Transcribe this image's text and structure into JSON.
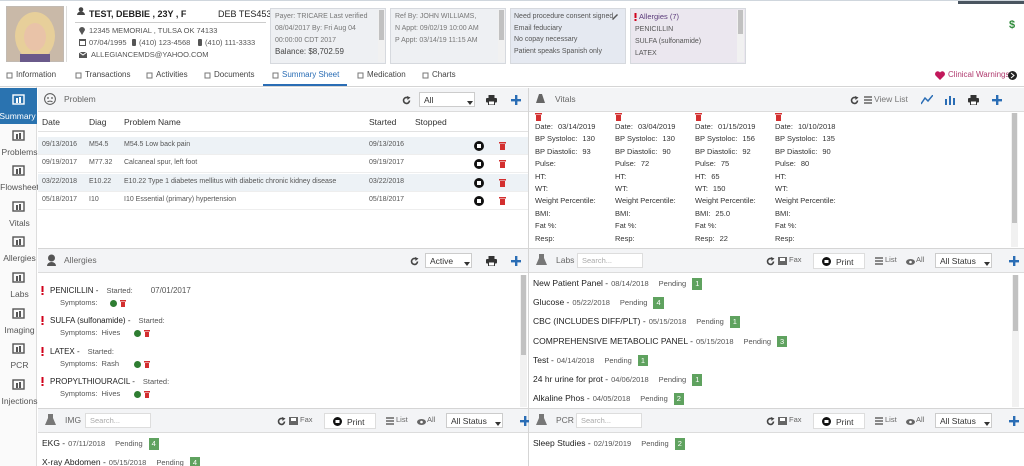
{
  "patient": {
    "name": "TEST, DEBBIE , 23Y , F",
    "id": "DEB TES453",
    "address": "12345 MEMORIAL , TULSA OK 74133",
    "dob": "07/04/1995",
    "phone1": "(410) 123-4568",
    "phone2": "(410) 111-3333",
    "email": "ALLEGIANCEMDS@YAHOO.COM"
  },
  "payer_box": {
    "lines": [
      "Payer: TRICARE Last verified",
      "08/04/2017 By:  Fri Aug 04",
      "00:00:00 CDT 2017"
    ],
    "balance": "Balance: $8,702.59"
  },
  "ref_box": {
    "lines": [
      "Ref By: JOHN WILLIAMS,",
      "N Appt: 09/02/19 10:00 AM",
      "P Appt: 03/14/19 11:15 AM"
    ]
  },
  "notes_box": {
    "lines": [
      "Need procedure consent signed",
      "Email feduciary",
      "No copay necessary",
      "Patient speaks Spanish only"
    ]
  },
  "allergy_box": {
    "title": "Allergies (7)",
    "items": [
      "PENICILLIN",
      "SULFA (sulfonamide)",
      "LATEX"
    ]
  },
  "currency": "$",
  "tabs": [
    "Information",
    "Transactions",
    "Activities",
    "Documents",
    "Summary Sheet",
    "Medication",
    "Charts"
  ],
  "clinical_warnings": "Clinical Warnings",
  "sidebar": [
    "Summary",
    "Problems",
    "Flowsheet",
    "Vitals",
    "Allergies",
    "Labs",
    "Imaging",
    "PCR",
    "Injections"
  ],
  "problem_panel": {
    "title": "Problem",
    "filter": "All",
    "columns": [
      "Date",
      "Diag",
      "Problem Name",
      "Started",
      "Stopped"
    ],
    "rows": [
      [
        "09/13/2016",
        "M54.5",
        "M54.5 Low back pain",
        "09/13/2016"
      ],
      [
        "09/19/2017",
        "M77.32",
        "Calcaneal spur, left foot",
        "09/19/2017"
      ],
      [
        "03/22/2018",
        "E10.22",
        "E10.22 Type 1 diabetes mellitus with diabetic chronic kidney disease",
        "03/22/2018"
      ],
      [
        "05/18/2017",
        "I10",
        "I10 Essential (primary) hypertension",
        "05/18/2017"
      ]
    ]
  },
  "vitals_panel": {
    "title": "Vitals",
    "view_list": "View List",
    "labels": [
      "Date:",
      "BP Systoloc:",
      "BP Diastolic:",
      "Pulse:",
      "HT:",
      "WT:",
      "Weight Percentile:",
      "BMI:",
      "Fat %:",
      "Resp:"
    ],
    "records": [
      [
        "03/14/2019",
        130,
        93,
        null,
        null,
        null,
        null,
        null,
        null,
        null
      ],
      [
        "03/04/2019",
        130,
        90,
        72,
        null,
        null,
        null,
        null,
        null,
        null
      ],
      [
        "01/15/2019",
        156,
        92,
        75,
        65,
        150,
        null,
        "25.0",
        null,
        22
      ],
      [
        "10/10/2018",
        135,
        90,
        80,
        null,
        null,
        null,
        null,
        null,
        null
      ]
    ]
  },
  "allergies_panel": {
    "title": "Allergies",
    "filter": "Active",
    "started_label": "Started:",
    "symptoms_label": "Symptoms:",
    "items": [
      {
        "name": "PENICILLIN -",
        "started": "07/01/2017"
      },
      {
        "name": "SULFA (sulfonamide) -",
        "symptoms": "Hives"
      },
      {
        "name": "LATEX -",
        "symptoms": "Rash"
      },
      {
        "name": "PROPYLTHIOURACIL -",
        "symptoms": "Hives"
      }
    ]
  },
  "labs_panel": {
    "title": "Labs",
    "search": "Search...",
    "fax": "Fax",
    "print": "Print",
    "list": "List",
    "all": "All",
    "status": "All Status",
    "items": [
      {
        "name": "New Patient Panel -",
        "date": "08/14/2018",
        "status": "Pending",
        "count": 1
      },
      {
        "name": "Glucose -",
        "date": "05/22/2018",
        "status": "Pending",
        "count": 4
      },
      {
        "name": "CBC (INCLUDES DIFF/PLT) -",
        "date": "05/15/2018",
        "status": "Pending",
        "count": 1
      },
      {
        "name": "COMPREHENSIVE METABOLIC PANEL -",
        "date": "05/15/2018",
        "status": "Pending",
        "count": 3
      },
      {
        "name": "Test -",
        "date": "04/14/2018",
        "status": "Pending",
        "count": 1
      },
      {
        "name": "24 hr urine for prot -",
        "date": "04/06/2018",
        "status": "Pending",
        "count": 1
      },
      {
        "name": "Alkaline Phos -",
        "date": "04/05/2018",
        "status": "Pending",
        "count": 2
      }
    ]
  },
  "img_panel": {
    "title": "IMG",
    "search": "Search...",
    "fax": "Fax",
    "print": "Print",
    "list": "List",
    "all": "All",
    "status": "All Status",
    "items": [
      {
        "name": "EKG -",
        "date": "07/11/2018",
        "status": "Pending",
        "count": 4
      },
      {
        "name": "X-ray Abdomen -",
        "date": "05/15/2018",
        "status": "Pending",
        "count": 4
      }
    ]
  },
  "pcr_panel": {
    "title": "PCR",
    "search": "Search...",
    "fax": "Fax",
    "print": "Print",
    "list": "List",
    "all": "All",
    "status": "All Status",
    "items": [
      {
        "name": "Sleep Studies -",
        "date": "02/19/2019",
        "status": "Pending",
        "count": 2
      }
    ]
  }
}
